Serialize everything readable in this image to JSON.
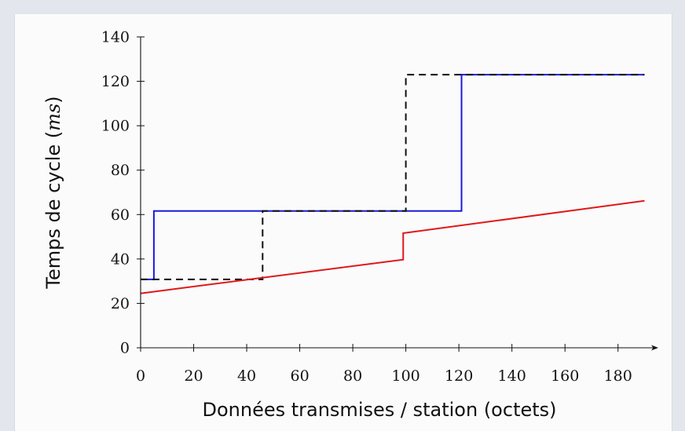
{
  "chart_data": {
    "type": "line",
    "xlabel": "Données transmises / station (octets)",
    "ylabel_main": "Temps de cycle ",
    "ylabel_unit": "ms",
    "xlim": [
      0,
      190
    ],
    "ylim": [
      0,
      140
    ],
    "xticks": [
      0,
      20,
      40,
      60,
      80,
      100,
      120,
      140,
      160,
      180
    ],
    "yticks": [
      0,
      20,
      40,
      60,
      80,
      100,
      120,
      140
    ],
    "grid": false,
    "series": [
      {
        "style": "solid",
        "color": "#1a1adb",
        "x": [
          0,
          5,
          5,
          121,
          121,
          190
        ],
        "y": [
          30.8,
          30.8,
          61.6,
          61.6,
          123,
          123
        ]
      },
      {
        "style": "dashed",
        "color": "#111111",
        "x": [
          0,
          46,
          46,
          100,
          100,
          190
        ],
        "y": [
          30.8,
          30.8,
          61.6,
          61.6,
          123,
          123
        ]
      },
      {
        "style": "solid",
        "color": "#e01818",
        "x": [
          0,
          99,
          99,
          190
        ],
        "y": [
          24.5,
          39.7,
          51.6,
          66.2
        ]
      }
    ]
  }
}
